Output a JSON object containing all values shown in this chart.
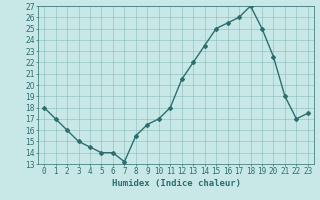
{
  "x": [
    0,
    1,
    2,
    3,
    4,
    5,
    6,
    7,
    8,
    9,
    10,
    11,
    12,
    13,
    14,
    15,
    16,
    17,
    18,
    19,
    20,
    21,
    22,
    23
  ],
  "y": [
    18,
    17,
    16,
    15,
    14.5,
    14,
    14,
    13.2,
    15.5,
    16.5,
    17,
    18,
    20.5,
    22,
    23.5,
    25,
    25.5,
    26,
    27,
    25,
    22.5,
    19,
    17,
    17.5
  ],
  "line_color": "#2d6e6e",
  "bg_color": "#c8e8e8",
  "grid_color": "#8ababa",
  "xlabel": "Humidex (Indice chaleur)",
  "ylim": [
    13,
    27
  ],
  "xlim": [
    -0.5,
    23.5
  ],
  "yticks": [
    13,
    14,
    15,
    16,
    17,
    18,
    19,
    20,
    21,
    22,
    23,
    24,
    25,
    26,
    27
  ],
  "xticks": [
    0,
    1,
    2,
    3,
    4,
    5,
    6,
    7,
    8,
    9,
    10,
    11,
    12,
    13,
    14,
    15,
    16,
    17,
    18,
    19,
    20,
    21,
    22,
    23
  ],
  "xtick_labels": [
    "0",
    "1",
    "2",
    "3",
    "4",
    "5",
    "6",
    "7",
    "8",
    "9",
    "10",
    "11",
    "12",
    "13",
    "14",
    "15",
    "16",
    "17",
    "18",
    "19",
    "20",
    "21",
    "22",
    "23"
  ],
  "marker": "D",
  "marker_size": 2,
  "line_width": 1.0,
  "tick_font_size": 5.5,
  "xlabel_font_size": 6.5,
  "xlabel_fontweight": "bold"
}
